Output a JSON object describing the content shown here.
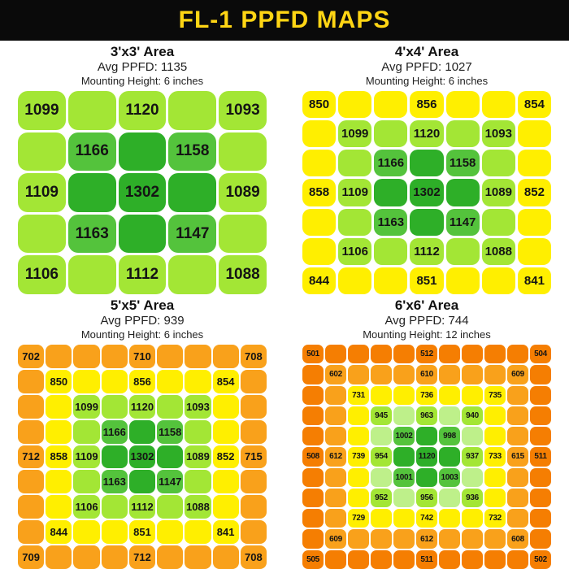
{
  "title": "FL-1 PPFD MAPS",
  "colors": {
    "lg": "#a3e635",
    "pg": "#bef08a",
    "mg": "#54c33c",
    "dg": "#2eaf28",
    "y": "#ffef00",
    "o": "#f9a11b",
    "do": "#f57e02",
    "title_bar_bg": "#0a0a0a",
    "title_text": "#ffd514"
  },
  "panels": [
    {
      "title": "3'x3' Area",
      "avg": "Avg PPFD: 1135",
      "mounting": "Mounting Height: 6 inches"
    },
    {
      "title": "4'x4' Area",
      "avg": "Avg PPFD: 1027",
      "mounting": "Mounting Height: 6 inches"
    },
    {
      "title": "5'x5' Area",
      "avg": "Avg PPFD: 939",
      "mounting": "Mounting Height: 6 inches"
    },
    {
      "title": "6'x6' Area",
      "avg": "Avg PPFD: 744",
      "mounting": "Mounting Height: 12 inches"
    }
  ],
  "chart_data": [
    {
      "type": "heatmap",
      "title": "3'x3' Area",
      "avg_ppfd": 1135,
      "mounting_height_inches": 6,
      "cols": 5,
      "cells": [
        [
          "lg:1099",
          "lg:",
          "lg:1120",
          "lg:",
          "lg:1093"
        ],
        [
          "lg:",
          "mg:1166",
          "dg:",
          "mg:1158",
          "lg:"
        ],
        [
          "lg:1109",
          "dg:",
          "dg:1302",
          "dg:",
          "lg:1089"
        ],
        [
          "lg:",
          "mg:1163",
          "dg:",
          "mg:1147",
          "lg:"
        ],
        [
          "lg:1106",
          "lg:",
          "lg:1112",
          "lg:",
          "lg:1088"
        ]
      ]
    },
    {
      "type": "heatmap",
      "title": "4'x4' Area",
      "avg_ppfd": 1027,
      "mounting_height_inches": 6,
      "cols": 7,
      "cells": [
        [
          "y:850",
          "y:",
          "y:",
          "y:856",
          "y:",
          "y:",
          "y:854"
        ],
        [
          "y:",
          "lg:1099",
          "lg:",
          "lg:1120",
          "lg:",
          "lg:1093",
          "y:"
        ],
        [
          "y:",
          "lg:",
          "mg:1166",
          "dg:",
          "mg:1158",
          "lg:",
          "y:"
        ],
        [
          "y:858",
          "lg:1109",
          "dg:",
          "dg:1302",
          "dg:",
          "lg:1089",
          "y:852"
        ],
        [
          "y:",
          "lg:",
          "mg:1163",
          "dg:",
          "mg:1147",
          "lg:",
          "y:"
        ],
        [
          "y:",
          "lg:1106",
          "lg:",
          "lg:1112",
          "lg:",
          "lg:1088",
          "y:"
        ],
        [
          "y:844",
          "y:",
          "y:",
          "y:851",
          "y:",
          "y:",
          "y:841"
        ]
      ]
    },
    {
      "type": "heatmap",
      "title": "5'x5' Area",
      "avg_ppfd": 939,
      "mounting_height_inches": 6,
      "cols": 9,
      "cells": [
        [
          "o:702",
          "o:",
          "o:",
          "o:",
          "o:710",
          "o:",
          "o:",
          "o:",
          "o:708"
        ],
        [
          "o:",
          "y:850",
          "y:",
          "y:",
          "y:856",
          "y:",
          "y:",
          "y:854",
          "o:"
        ],
        [
          "o:",
          "y:",
          "lg:1099",
          "lg:",
          "lg:1120",
          "lg:",
          "lg:1093",
          "y:",
          "o:"
        ],
        [
          "o:",
          "y:",
          "lg:",
          "mg:1166",
          "dg:",
          "mg:1158",
          "lg:",
          "y:",
          "o:"
        ],
        [
          "o:712",
          "y:858",
          "lg:1109",
          "dg:",
          "dg:1302",
          "dg:",
          "lg:1089",
          "y:852",
          "o:715"
        ],
        [
          "o:",
          "y:",
          "lg:",
          "mg:1163",
          "dg:",
          "mg:1147",
          "lg:",
          "y:",
          "o:"
        ],
        [
          "o:",
          "y:",
          "lg:1106",
          "lg:",
          "lg:1112",
          "lg:",
          "lg:1088",
          "y:",
          "o:"
        ],
        [
          "o:",
          "y:844",
          "y:",
          "y:",
          "y:851",
          "y:",
          "y:",
          "y:841",
          "o:"
        ],
        [
          "o:709",
          "o:",
          "o:",
          "o:",
          "o:712",
          "o:",
          "o:",
          "o:",
          "o:708"
        ]
      ]
    },
    {
      "type": "heatmap",
      "title": "6'x6' Area",
      "avg_ppfd": 744,
      "mounting_height_inches": 12,
      "cols": 11,
      "cells": [
        [
          "do:501",
          "do:",
          "do:",
          "do:",
          "do:",
          "do:512",
          "do:",
          "do:",
          "do:",
          "do:",
          "do:504"
        ],
        [
          "do:",
          "o:602",
          "o:",
          "o:",
          "o:",
          "o:610",
          "o:",
          "o:",
          "o:",
          "o:609",
          "do:"
        ],
        [
          "do:",
          "o:",
          "y:731",
          "y:",
          "y:",
          "y:736",
          "y:",
          "y:",
          "y:735",
          "o:",
          "do:"
        ],
        [
          "do:",
          "o:",
          "y:",
          "lg:945",
          "pg:",
          "lg:963",
          "pg:",
          "lg:940",
          "y:",
          "o:",
          "do:"
        ],
        [
          "do:",
          "o:",
          "y:",
          "pg:",
          "mg:1002",
          "dg:",
          "mg:998",
          "pg:",
          "y:",
          "o:",
          "do:"
        ],
        [
          "do:508",
          "o:612",
          "y:739",
          "lg:954",
          "dg:",
          "dg:1120",
          "dg:",
          "lg:937",
          "y:733",
          "o:615",
          "do:511"
        ],
        [
          "do:",
          "o:",
          "y:",
          "pg:",
          "mg:1001",
          "dg:",
          "mg:1003",
          "pg:",
          "y:",
          "o:",
          "do:"
        ],
        [
          "do:",
          "o:",
          "y:",
          "lg:952",
          "pg:",
          "lg:956",
          "pg:",
          "lg:936",
          "y:",
          "o:",
          "do:"
        ],
        [
          "do:",
          "o:",
          "y:729",
          "y:",
          "y:",
          "y:742",
          "y:",
          "y:",
          "y:732",
          "o:",
          "do:"
        ],
        [
          "do:",
          "o:609",
          "o:",
          "o:",
          "o:",
          "o:612",
          "o:",
          "o:",
          "o:",
          "o:608",
          "do:"
        ],
        [
          "do:505",
          "do:",
          "do:",
          "do:",
          "do:",
          "do:511",
          "do:",
          "do:",
          "do:",
          "do:",
          "do:502"
        ]
      ]
    }
  ]
}
